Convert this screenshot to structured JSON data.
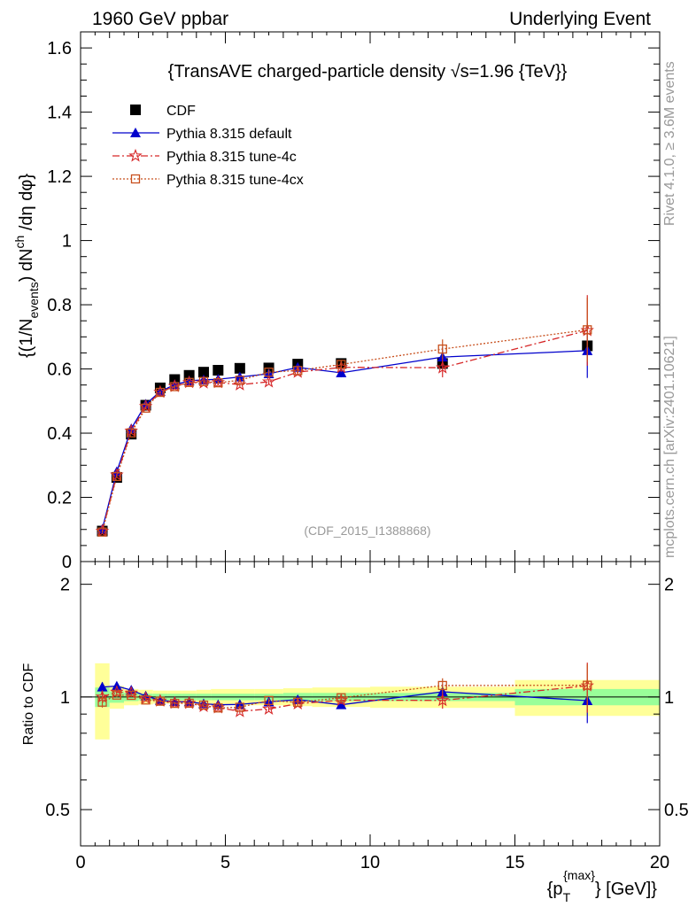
{
  "header": {
    "left": "1960 GeV ppbar",
    "right": "Underlying Event"
  },
  "side": {
    "rivet": "Rivet 4.1.0, ≥ 3.6M events",
    "mcplots": "mcplots.cern.ch [arXiv:2401.10621]"
  },
  "chart_data": {
    "type": "scatter",
    "title": "{TransAVE charged-particle density √s=1.96 {TeV}}",
    "watermark": "(CDF_2015_I1388868)",
    "ylabel_main": "{(1/N_events) dN_ch /dη dφ}",
    "ylabel_main_parts": {
      "a": "{(1/N",
      "b": "events",
      "c": ") dN",
      "d": "ch",
      "e": " /dη  dφ}"
    },
    "ylabel_ratio": "Ratio to CDF",
    "xlabel": "{p_T^{max}} [GeV]",
    "xlabel_parts": {
      "a": "{p",
      "b": "T",
      "c": "{max}",
      "d": "} [GeV]}"
    },
    "xlim": [
      0,
      20
    ],
    "ylim_main": [
      0,
      1.65
    ],
    "ylim_ratio": [
      0.4,
      2.3
    ],
    "xticks": [
      0,
      5,
      10,
      15,
      20
    ],
    "xtick_labels": [
      "0",
      "5",
      "10",
      "15",
      "20"
    ],
    "yticks_main": [
      0,
      0.2,
      0.4,
      0.6,
      0.8,
      1,
      1.2,
      1.4,
      1.6
    ],
    "ytick_labels_main": [
      "0",
      "0.2",
      "0.4",
      "0.6",
      "0.8",
      "1",
      "1.2",
      "1.4",
      "1.6"
    ],
    "yticks_ratio": [
      0.5,
      1,
      2
    ],
    "ytick_labels_ratio": [
      "0.5",
      "1",
      "2"
    ],
    "legend": [
      {
        "name": "CDF",
        "color": "#000000",
        "marker": "square",
        "dash": ""
      },
      {
        "name": "Pythia 8.315 default",
        "color": "#0000cc",
        "marker": "triangle",
        "dash": ""
      },
      {
        "name": "Pythia 8.315 tune-4c",
        "color": "#d62728",
        "marker": "star",
        "dash": "8,3,2,3"
      },
      {
        "name": "Pythia 8.315 tune-4cx",
        "color": "#c8501e",
        "marker": "open-square",
        "dash": "2,2"
      }
    ],
    "x": [
      0.75,
      1.25,
      1.75,
      2.25,
      2.75,
      3.25,
      3.75,
      4.25,
      4.75,
      5.5,
      6.5,
      7.5,
      9.0,
      12.5,
      17.5
    ],
    "x_bins": [
      [
        0.5,
        1.0
      ],
      [
        1.0,
        1.5
      ],
      [
        1.5,
        2.0
      ],
      [
        2.0,
        2.5
      ],
      [
        2.5,
        3.0
      ],
      [
        3.0,
        3.5
      ],
      [
        3.5,
        4.0
      ],
      [
        4.0,
        4.5
      ],
      [
        4.5,
        5.0
      ],
      [
        5.0,
        6.0
      ],
      [
        6.0,
        7.0
      ],
      [
        7.0,
        8.0
      ],
      [
        8.0,
        10.0
      ],
      [
        10.0,
        15.0
      ],
      [
        15.0,
        20.0
      ]
    ],
    "series": [
      {
        "name": "CDF",
        "values": [
          0.095,
          0.262,
          0.397,
          0.487,
          0.541,
          0.567,
          0.58,
          0.59,
          0.596,
          0.602,
          0.603,
          0.615,
          0.617,
          0.617,
          0.672
        ],
        "err": [
          0.005,
          0.006,
          0.007,
          0.007,
          0.007,
          0.007,
          0.007,
          0.007,
          0.007,
          0.007,
          0.007,
          0.008,
          0.009,
          0.012,
          0.02
        ]
      },
      {
        "name": "Pythia 8.315 default",
        "values": [
          0.101,
          0.28,
          0.414,
          0.49,
          0.53,
          0.551,
          0.563,
          0.566,
          0.568,
          0.575,
          0.585,
          0.605,
          0.588,
          0.637,
          0.657
        ],
        "err": [
          0.003,
          0.004,
          0.004,
          0.004,
          0.004,
          0.005,
          0.005,
          0.006,
          0.006,
          0.006,
          0.008,
          0.01,
          0.014,
          0.03,
          0.085
        ]
      },
      {
        "name": "Pythia 8.315 tune-4c",
        "values": [
          0.095,
          0.27,
          0.407,
          0.483,
          0.528,
          0.546,
          0.558,
          0.557,
          0.558,
          0.551,
          0.56,
          0.59,
          0.605,
          0.604,
          0.72
        ],
        "err": [
          0.003,
          0.004,
          0.004,
          0.004,
          0.004,
          0.005,
          0.005,
          0.006,
          0.006,
          0.006,
          0.008,
          0.01,
          0.014,
          0.03,
          0.11
        ]
      },
      {
        "name": "Pythia 8.315 tune-4cx",
        "values": [
          0.092,
          0.265,
          0.401,
          0.478,
          0.527,
          0.545,
          0.558,
          0.561,
          0.557,
          0.565,
          0.59,
          0.595,
          0.614,
          0.662,
          0.722
        ],
        "err": [
          0.003,
          0.004,
          0.004,
          0.004,
          0.004,
          0.005,
          0.005,
          0.006,
          0.006,
          0.006,
          0.008,
          0.01,
          0.014,
          0.03,
          0.1
        ]
      }
    ],
    "ratio_bands": {
      "stat_halfwidth": [
        0.06,
        0.035,
        0.025,
        0.02,
        0.02,
        0.02,
        0.02,
        0.02,
        0.02,
        0.02,
        0.02,
        0.025,
        0.025,
        0.025,
        0.05
      ],
      "total_halfwidth": [
        0.23,
        0.07,
        0.05,
        0.045,
        0.04,
        0.04,
        0.04,
        0.045,
        0.05,
        0.05,
        0.05,
        0.055,
        0.06,
        0.065,
        0.11
      ]
    },
    "colors": {
      "band_total": "#ffff99",
      "band_stat": "#99ff99",
      "axis": "#000000",
      "watermark": "#999999"
    }
  }
}
